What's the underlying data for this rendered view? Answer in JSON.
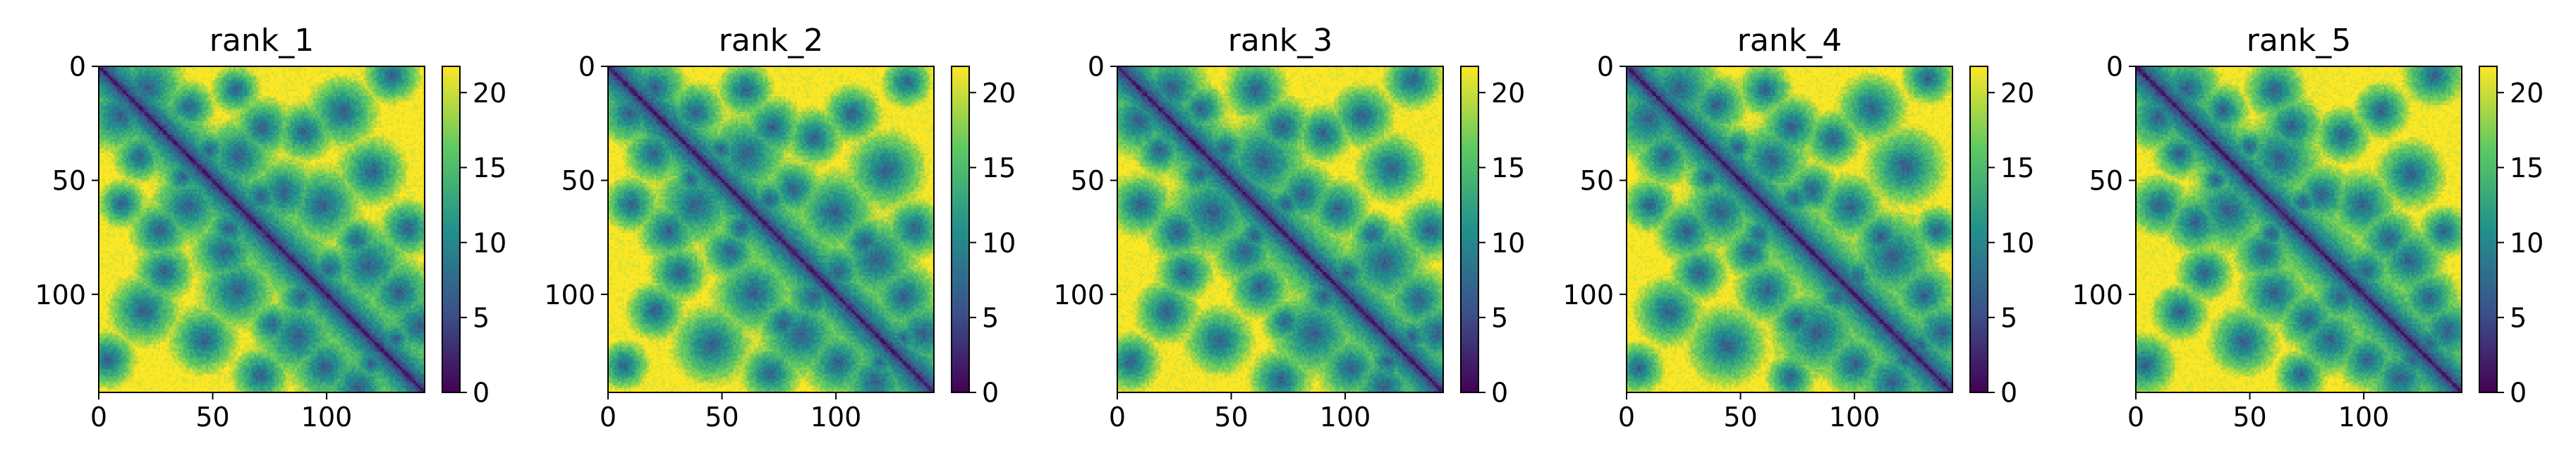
{
  "figure": {
    "colormap": "viridis",
    "colormap_stops": [
      "#440154",
      "#3b528b",
      "#21918c",
      "#5ec962",
      "#fde725"
    ]
  },
  "chart_data": [
    {
      "type": "heatmap",
      "title": "rank_1",
      "xlabel": "",
      "ylabel": "",
      "xlim": [
        0,
        143
      ],
      "ylim": [
        143,
        0
      ],
      "x_ticks": [
        0,
        50,
        100
      ],
      "y_ticks": [
        0,
        50,
        100
      ],
      "color_range": [
        0,
        21.75
      ],
      "colorbar_ticks": [
        0,
        5,
        10,
        15,
        20
      ],
      "matrix_size": 143,
      "grid": false
    },
    {
      "type": "heatmap",
      "title": "rank_2",
      "xlabel": "",
      "ylabel": "",
      "xlim": [
        0,
        143
      ],
      "ylim": [
        143,
        0
      ],
      "x_ticks": [
        0,
        50,
        100
      ],
      "y_ticks": [
        0,
        50,
        100
      ],
      "color_range": [
        0,
        21.75
      ],
      "colorbar_ticks": [
        0,
        5,
        10,
        15,
        20
      ],
      "matrix_size": 143,
      "grid": false
    },
    {
      "type": "heatmap",
      "title": "rank_3",
      "xlabel": "",
      "ylabel": "",
      "xlim": [
        0,
        143
      ],
      "ylim": [
        143,
        0
      ],
      "x_ticks": [
        0,
        50,
        100
      ],
      "y_ticks": [
        0,
        50,
        100
      ],
      "color_range": [
        0,
        21.75
      ],
      "colorbar_ticks": [
        0,
        5,
        10,
        15,
        20
      ],
      "matrix_size": 143,
      "grid": false
    },
    {
      "type": "heatmap",
      "title": "rank_4",
      "xlabel": "",
      "ylabel": "",
      "xlim": [
        0,
        143
      ],
      "ylim": [
        143,
        0
      ],
      "x_ticks": [
        0,
        50,
        100
      ],
      "y_ticks": [
        0,
        50,
        100
      ],
      "color_range": [
        0,
        21.75
      ],
      "colorbar_ticks": [
        0,
        5,
        10,
        15,
        20
      ],
      "matrix_size": 143,
      "grid": false
    },
    {
      "type": "heatmap",
      "title": "rank_5",
      "xlabel": "",
      "ylabel": "",
      "xlim": [
        0,
        143
      ],
      "ylim": [
        143,
        0
      ],
      "x_ticks": [
        0,
        50,
        100
      ],
      "y_ticks": [
        0,
        50,
        100
      ],
      "color_range": [
        0,
        21.75
      ],
      "colorbar_ticks": [
        0,
        5,
        10,
        15,
        20
      ],
      "matrix_size": 143,
      "grid": false
    }
  ]
}
